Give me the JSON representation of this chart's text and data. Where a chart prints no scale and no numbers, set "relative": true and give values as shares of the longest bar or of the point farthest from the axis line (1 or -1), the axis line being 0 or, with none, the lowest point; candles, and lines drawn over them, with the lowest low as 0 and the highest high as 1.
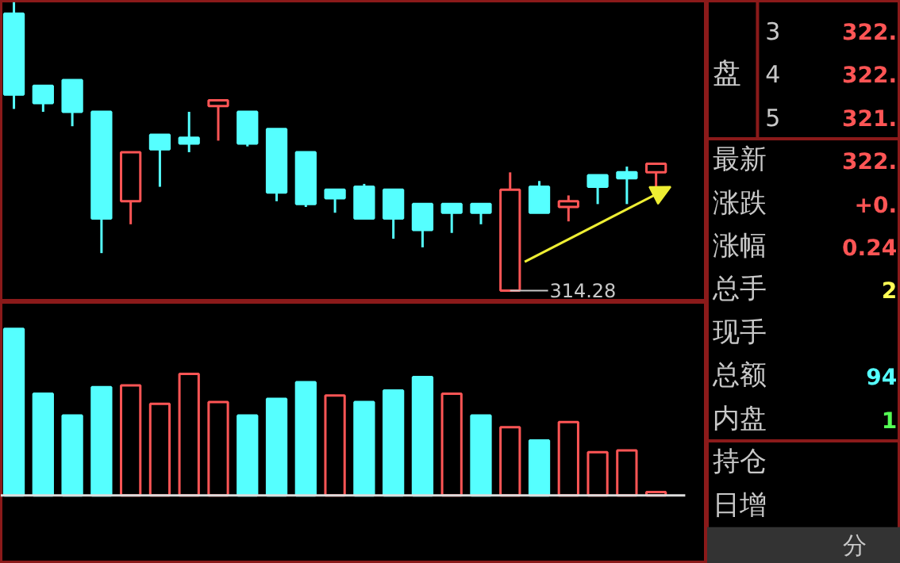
{
  "chart_data": [
    {
      "type": "candlestick",
      "relative": true,
      "categories": [
        null,
        null,
        null,
        null,
        null,
        null,
        null,
        null,
        null,
        null,
        null,
        null,
        null,
        null,
        null,
        null,
        null,
        null,
        null,
        null,
        null,
        null,
        null
      ],
      "ohlc": [
        [
          0.96,
          1,
          0.63,
          0.68
        ],
        [
          0.71,
          0.71,
          0.62,
          0.65
        ],
        [
          0.73,
          0.73,
          0.57,
          0.62
        ],
        [
          0.62,
          0.62,
          0.13,
          0.25
        ],
        [
          0.31,
          0.48,
          0.23,
          0.48
        ],
        [
          0.54,
          0.54,
          0.36,
          0.49
        ],
        [
          0.53,
          0.62,
          0.48,
          0.51
        ],
        [
          0.64,
          0.66,
          0.52,
          0.66
        ],
        [
          0.62,
          0.62,
          0.5,
          0.51
        ],
        [
          0.56,
          0.56,
          0.31,
          0.34
        ],
        [
          0.48,
          0.48,
          0.29,
          0.3
        ],
        [
          0.35,
          0.35,
          0.27,
          0.32
        ],
        [
          0.36,
          0.37,
          0.25,
          0.25
        ],
        [
          0.35,
          0.35,
          0.18,
          0.25
        ],
        [
          0.3,
          0.3,
          0.15,
          0.21
        ],
        [
          0.3,
          0.3,
          0.2,
          0.27
        ],
        [
          0.3,
          0.3,
          0.23,
          0.27
        ],
        [
          0,
          0.41,
          0,
          0.35
        ],
        [
          0.36,
          0.38,
          0.27,
          0.27
        ],
        [
          0.29,
          0.33,
          0.24,
          0.31
        ],
        [
          0.4,
          0.4,
          0.3,
          0.36
        ],
        [
          0.41,
          0.43,
          0.3,
          0.39
        ],
        [
          0.41,
          0.44,
          0.35,
          0.44
        ]
      ],
      "colors": [
        "#55ffff",
        "#55ffff",
        "#55ffff",
        "#55ffff",
        "#ff5555",
        "#55ffff",
        "#55ffff",
        "#ff5555",
        "#55ffff",
        "#55ffff",
        "#55ffff",
        "#55ffff",
        "#55ffff",
        "#55ffff",
        "#55ffff",
        "#55ffff",
        "#55ffff",
        "#ff5555",
        "#55ffff",
        "#ff5555",
        "#55ffff",
        "#55ffff",
        "#ff5555"
      ],
      "annotations": [
        "314.28"
      ]
    },
    {
      "type": "bar",
      "relative": true,
      "categories": [
        null,
        null,
        null,
        null,
        null,
        null,
        null,
        null,
        null,
        null,
        null,
        null,
        null,
        null,
        null,
        null,
        null,
        null,
        null,
        null,
        null,
        null,
        null
      ],
      "values": [
        1,
        0.61,
        0.48,
        0.65,
        0.66,
        0.55,
        0.73,
        0.56,
        0.48,
        0.58,
        0.68,
        0.6,
        0.56,
        0.63,
        0.71,
        0.61,
        0.48,
        0.41,
        0.33,
        0.44,
        0.26,
        0.27,
        0.02
      ],
      "colors": [
        "#55ffff",
        "#55ffff",
        "#55ffff",
        "#55ffff",
        "#ff5555",
        "#ff5555",
        "#ff5555",
        "#ff5555",
        "#55ffff",
        "#55ffff",
        "#55ffff",
        "#ff5555",
        "#55ffff",
        "#55ffff",
        "#55ffff",
        "#ff5555",
        "#55ffff",
        "#ff5555",
        "#55ffff",
        "#ff5555",
        "#ff5555",
        "#ff5555",
        "#ff5555"
      ]
    },
    {
      "type": "other",
      "title": "盘",
      "categories": [
        "3",
        "4",
        "5",
        "最新",
        "涨跌",
        "涨幅",
        "总手",
        "现手",
        "总额",
        "内盘",
        "持仓",
        "日增"
      ],
      "value_labels": [
        "322.",
        "322.",
        "321.",
        "322.",
        "+0.",
        "0.24",
        "2",
        null,
        "94",
        "1",
        null,
        null
      ],
      "annotations": [
        "分"
      ]
    }
  ]
}
